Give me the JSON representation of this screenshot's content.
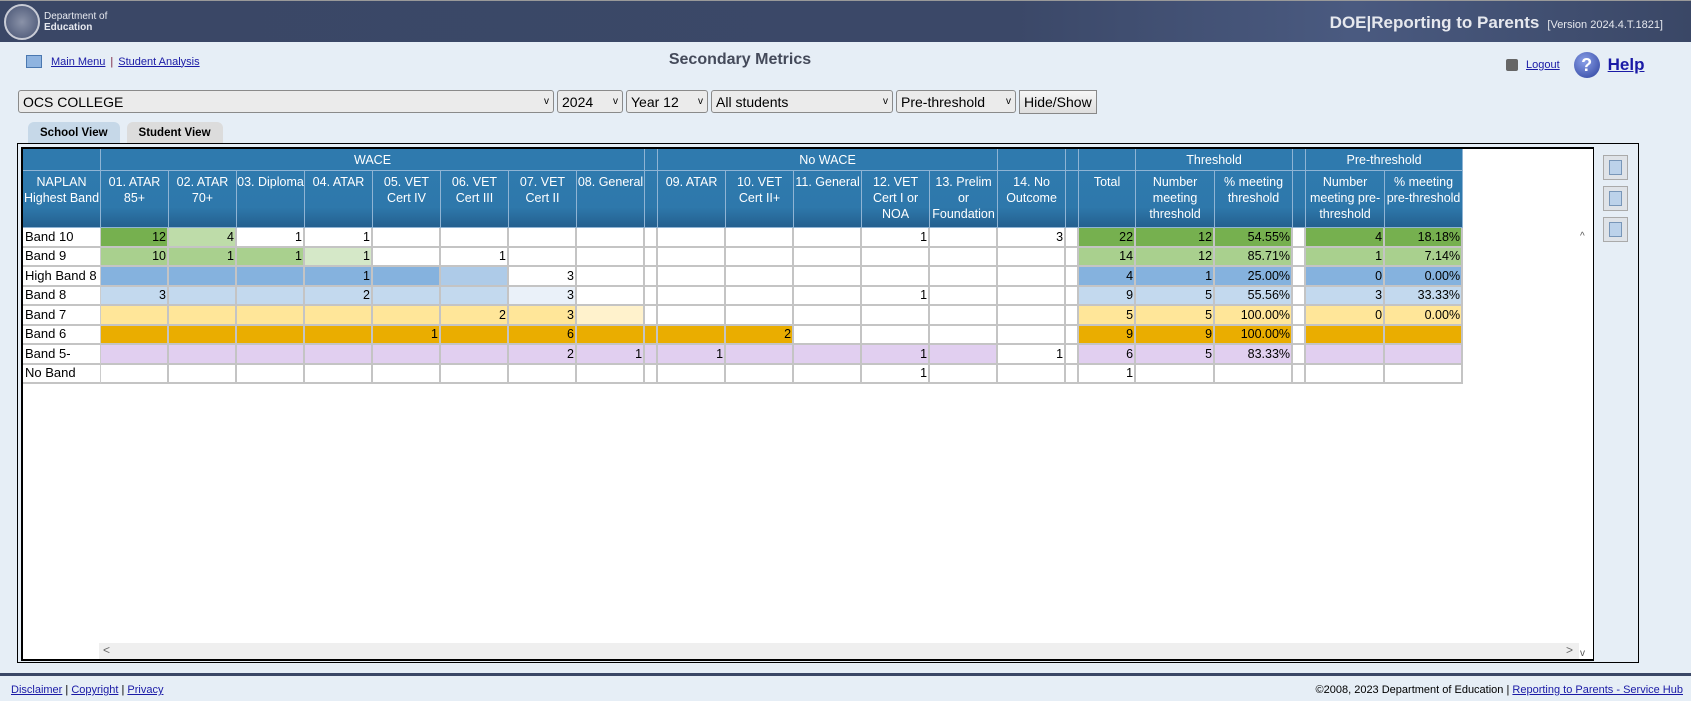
{
  "header": {
    "logo_line1": "Department of",
    "logo_line2": "Education",
    "app_title": "DOE|Reporting to Parents",
    "version": "[Version 2024.4.T.1821]"
  },
  "nav": {
    "main_menu": "Main Menu",
    "separator": "|",
    "student_analysis": "Student Analysis"
  },
  "page_title": "Secondary Metrics",
  "top_links": {
    "logout": "Logout",
    "help": "Help"
  },
  "filters": {
    "school": "OCS COLLEGE",
    "year": "2024",
    "year_level": "Year 12",
    "students": "All students",
    "threshold": "Pre-threshold",
    "hide_show": "Hide/Show"
  },
  "tabs": [
    {
      "label": "School View",
      "active": true
    },
    {
      "label": "Student View",
      "active": false
    }
  ],
  "table": {
    "groups": {
      "wace": "WACE",
      "no_wace": "No WACE",
      "threshold": "Threshold",
      "pre_threshold": "Pre-threshold"
    },
    "row_header": "NAPLAN Highest Band",
    "columns": [
      "01. ATAR 85+",
      "02. ATAR 70+",
      "03. Diploma",
      "04. ATAR",
      "05. VET Cert IV",
      "06. VET Cert III",
      "07. VET Cert II",
      "08. General",
      "09. ATAR",
      "10. VET Cert II+",
      "11. General",
      "12. VET Cert I or NOA",
      "13. Prelim or Foundation",
      "14. No Outcome",
      "Total",
      "Number meeting threshold",
      "% meeting threshold",
      "Number meeting pre-threshold",
      "% meeting pre-threshold"
    ],
    "colors": {
      "G1": "#76b04f",
      "G2": "#bedca9",
      "G3": "#a9d08e",
      "G4": "#d5e8c8",
      "B1": "#85b2de",
      "B2": "#aecbe8",
      "B3": "#c3d9ee",
      "B4": "#eaf1f9",
      "Y1": "#ffe699",
      "Y2": "#fff2cc",
      "O": "#eaad00",
      "P": "#e1cff0",
      "W": "#ffffff"
    },
    "rows": [
      {
        "label": "Band 10",
        "values": [
          "12",
          "4",
          "1",
          "1",
          "",
          "",
          "",
          "",
          "",
          "",
          "",
          "1",
          "",
          "3",
          "22",
          "12",
          "54.55%",
          "4",
          "18.18%"
        ],
        "colors": [
          "G1",
          "G2",
          "W",
          "W",
          "W",
          "W",
          "W",
          "W",
          "W",
          "W",
          "W",
          "W",
          "W",
          "W",
          "G1",
          "G1",
          "G1",
          "G1",
          "G1"
        ],
        "spacer": "W"
      },
      {
        "label": "Band 9",
        "values": [
          "10",
          "1",
          "1",
          "1",
          "",
          "1",
          "",
          "",
          "",
          "",
          "",
          "",
          "",
          "",
          "14",
          "12",
          "85.71%",
          "1",
          "7.14%"
        ],
        "colors": [
          "G3",
          "G3",
          "G3",
          "G4",
          "W",
          "W",
          "W",
          "W",
          "W",
          "W",
          "W",
          "W",
          "W",
          "W",
          "G3",
          "G3",
          "G3",
          "G3",
          "G3"
        ],
        "spacer": "W"
      },
      {
        "label": "High Band 8",
        "values": [
          "",
          "",
          "",
          "1",
          "",
          "",
          "3",
          "",
          "",
          "",
          "",
          "",
          "",
          "",
          "4",
          "1",
          "25.00%",
          "0",
          "0.00%"
        ],
        "colors": [
          "B1",
          "B1",
          "B1",
          "B1",
          "B1",
          "B2",
          "W",
          "W",
          "W",
          "W",
          "W",
          "W",
          "W",
          "W",
          "B1",
          "B1",
          "B1",
          "B1",
          "B1"
        ],
        "spacer": "W"
      },
      {
        "label": "Band 8",
        "values": [
          "3",
          "",
          "",
          "2",
          "",
          "",
          "3",
          "",
          "",
          "",
          "",
          "1",
          "",
          "",
          "9",
          "5",
          "55.56%",
          "3",
          "33.33%"
        ],
        "colors": [
          "B3",
          "B3",
          "B3",
          "B3",
          "B3",
          "B3",
          "B4",
          "W",
          "W",
          "W",
          "W",
          "W",
          "W",
          "W",
          "B3",
          "B3",
          "B3",
          "B3",
          "B3"
        ],
        "spacer": "W"
      },
      {
        "label": "Band 7",
        "values": [
          "",
          "",
          "",
          "",
          "",
          "2",
          "3",
          "",
          "",
          "",
          "",
          "",
          "",
          "",
          "5",
          "5",
          "100.00%",
          "0",
          "0.00%"
        ],
        "colors": [
          "Y1",
          "Y1",
          "Y1",
          "Y1",
          "Y1",
          "Y1",
          "Y1",
          "Y2",
          "W",
          "W",
          "W",
          "W",
          "W",
          "W",
          "Y1",
          "Y1",
          "Y1",
          "Y1",
          "Y1"
        ],
        "spacer": "W"
      },
      {
        "label": "Band 6",
        "values": [
          "",
          "",
          "",
          "",
          "1",
          "",
          "6",
          "",
          "",
          "2",
          "",
          "",
          "",
          "",
          "9",
          "9",
          "100.00%",
          "",
          ""
        ],
        "colors": [
          "O",
          "O",
          "O",
          "O",
          "O",
          "O",
          "O",
          "O",
          "O",
          "O",
          "W",
          "W",
          "W",
          "W",
          "O",
          "O",
          "O",
          "O",
          "O"
        ],
        "spacer": "O"
      },
      {
        "label": "Band 5-",
        "values": [
          "",
          "",
          "",
          "",
          "",
          "",
          "2",
          "1",
          "1",
          "",
          "",
          "1",
          "",
          "1",
          "6",
          "5",
          "83.33%",
          "",
          ""
        ],
        "colors": [
          "P",
          "P",
          "P",
          "P",
          "P",
          "P",
          "P",
          "P",
          "P",
          "P",
          "P",
          "P",
          "P",
          "W",
          "P",
          "P",
          "P",
          "P",
          "P"
        ],
        "spacer": "P"
      },
      {
        "label": "No Band",
        "values": [
          "",
          "",
          "",
          "",
          "",
          "",
          "",
          "",
          "",
          "",
          "",
          "1",
          "",
          "",
          "1",
          "",
          "",
          "",
          ""
        ],
        "colors": [
          "W",
          "W",
          "W",
          "W",
          "W",
          "W",
          "W",
          "W",
          "W",
          "W",
          "W",
          "W",
          "W",
          "W",
          "W",
          "W",
          "W",
          "W",
          "W"
        ],
        "spacer": "W"
      }
    ]
  },
  "footer": {
    "disclaimer": "Disclaimer",
    "copyright": "Copyright",
    "privacy": "Privacy",
    "sep": "|",
    "copyright_text": "©2008, 2023 Department of Education",
    "service_hub": "Reporting to Parents - Service Hub"
  }
}
